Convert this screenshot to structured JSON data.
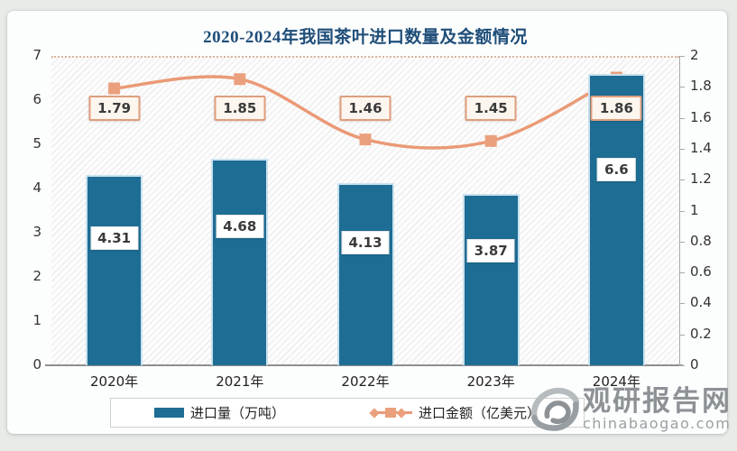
{
  "watermark": {
    "brand": "观研报告网",
    "domain": "chinabaogao.com"
  },
  "chart_data": {
    "type": "bar",
    "subtype": "bar+line combo, dual axis",
    "title": "2020-2024年我国茶叶进口数量及金额情况",
    "categories": [
      "2020年",
      "2021年",
      "2022年",
      "2023年",
      "2024年"
    ],
    "series": [
      {
        "name": "进口量（万吨）",
        "type": "bar",
        "axis": "left",
        "values": [
          4.31,
          4.68,
          4.13,
          3.87,
          6.6
        ],
        "labels": [
          "4.31",
          "4.68",
          "4.13",
          "3.87",
          "6.6"
        ],
        "color": "#1e6d94"
      },
      {
        "name": "进口金额（亿美元）",
        "type": "line",
        "axis": "right",
        "values": [
          1.79,
          1.85,
          1.46,
          1.45,
          1.86
        ],
        "labels": [
          "1.79",
          "1.85",
          "1.46",
          "1.45",
          "1.86"
        ],
        "color": "#ea9a76",
        "marker": "square",
        "marker_color": "#eba07d",
        "smooth": true
      }
    ],
    "left_axis": {
      "min": 0,
      "max": 7,
      "step": 1,
      "tick_labels": [
        "0",
        "1",
        "2",
        "3",
        "4",
        "5",
        "6",
        "7"
      ]
    },
    "right_axis": {
      "min": 0,
      "max": 2,
      "step": 0.2,
      "tick_labels": [
        "0",
        "0.2",
        "0.4",
        "0.6",
        "0.8",
        "1",
        "1.2",
        "1.4",
        "1.6",
        "1.8",
        "2"
      ]
    },
    "legend_position": "bottom",
    "grid": "off",
    "plot_background": "diagonal-hatch",
    "colors": {
      "title": "#1f4e79",
      "bar": "#1e6d94",
      "bar_edge": "#c9e2ef",
      "line": "#ea9a76",
      "marker": "#eba07d",
      "line_label_bg": "#fdf6ee",
      "line_label_border": "#df9e7e",
      "bar_label_bg": "#ffffff",
      "axis_text": "#333333",
      "watermark": "#8d9296"
    }
  }
}
